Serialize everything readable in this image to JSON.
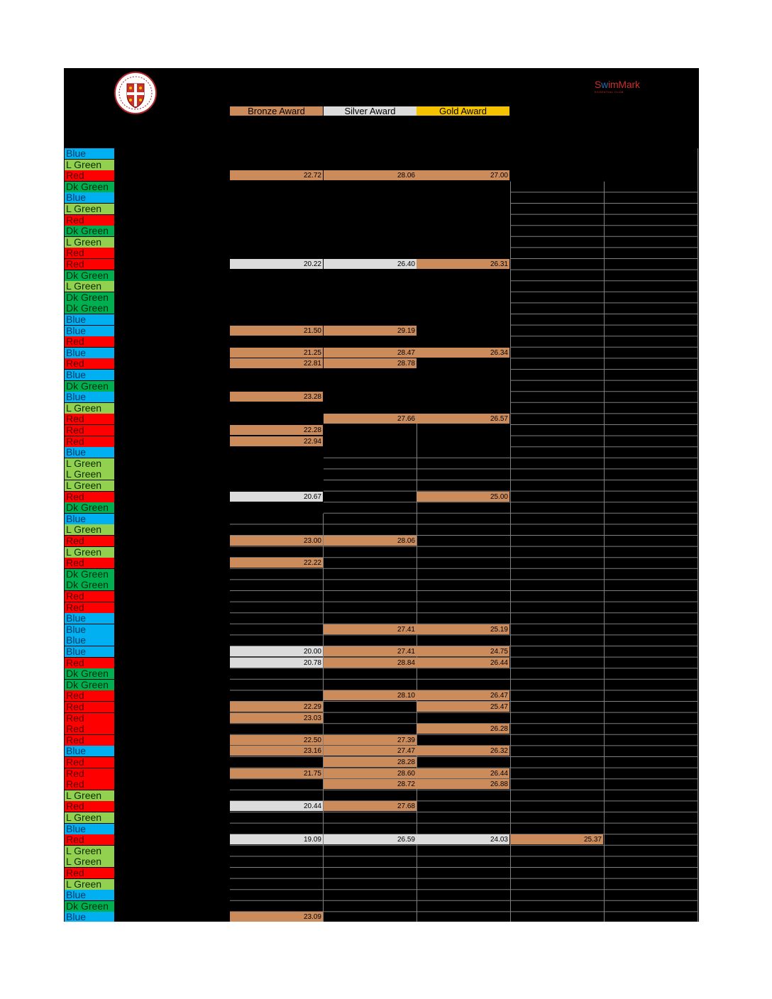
{
  "header": {
    "club_logo_icon": "club-crest-icon",
    "swimmark_logo": {
      "s": "S",
      "w": "w",
      "rest": "imMark",
      "sub": "ESSENTIAL CLUB"
    }
  },
  "legend": {
    "bronze": "Bronze Award",
    "silver": "Silver Award",
    "gold": "Gold Award"
  },
  "colors": {
    "bronze": "#cc8b5b",
    "silver": "#dcdcdc",
    "gold": "#f5c200",
    "Blue": "#00b0f0",
    "L Green": "#92d050",
    "Red": "#ff0000",
    "Dk Green": "#00b050"
  },
  "rows": [
    {
      "tag": "Blue",
      "c": []
    },
    {
      "tag": "L Green",
      "c": []
    },
    {
      "tag": "Red",
      "c": [
        [
          "22.72",
          "bronze"
        ],
        [
          "28.06",
          "bronze"
        ],
        [
          "27.00",
          "bronze"
        ]
      ]
    },
    {
      "tag": "Dk Green",
      "c": []
    },
    {
      "tag": "Blue",
      "c": []
    },
    {
      "tag": "L Green",
      "c": []
    },
    {
      "tag": "Red",
      "c": []
    },
    {
      "tag": "Dk Green",
      "c": []
    },
    {
      "tag": "L Green",
      "c": []
    },
    {
      "tag": "Red",
      "c": []
    },
    {
      "tag": "Red",
      "c": [
        [
          "20.22",
          "silver"
        ],
        [
          "26.40",
          "silver"
        ],
        [
          "26.31",
          "bronze"
        ]
      ]
    },
    {
      "tag": "Dk Green",
      "c": []
    },
    {
      "tag": "L Green",
      "c": []
    },
    {
      "tag": "Dk Green",
      "c": []
    },
    {
      "tag": "Dk Green",
      "c": []
    },
    {
      "tag": "Blue",
      "c": []
    },
    {
      "tag": "Blue",
      "c": [
        [
          "21.50",
          "bronze"
        ],
        [
          "29.19",
          "bronze"
        ]
      ]
    },
    {
      "tag": "Red",
      "c": []
    },
    {
      "tag": "Blue",
      "c": [
        [
          "21.25",
          "bronze"
        ],
        [
          "28.47",
          "bronze"
        ],
        [
          "26.34",
          "bronze"
        ]
      ]
    },
    {
      "tag": "Red",
      "c": [
        [
          "22.81",
          "bronze"
        ],
        [
          "28.78",
          "bronze"
        ]
      ]
    },
    {
      "tag": "Blue",
      "c": []
    },
    {
      "tag": "Dk Green",
      "c": []
    },
    {
      "tag": "Blue",
      "c": [
        [
          "23.28",
          "bronze"
        ]
      ]
    },
    {
      "tag": "L Green",
      "c": []
    },
    {
      "tag": "Red",
      "c": [
        null,
        [
          "27.66",
          "bronze"
        ],
        [
          "26.57",
          "bronze"
        ]
      ]
    },
    {
      "tag": "Red",
      "c": [
        [
          "22.28",
          "bronze"
        ]
      ]
    },
    {
      "tag": "Red",
      "c": [
        [
          "22.94",
          "bronze"
        ]
      ]
    },
    {
      "tag": "Blue",
      "c": []
    },
    {
      "tag": "L Green",
      "c": []
    },
    {
      "tag": "L Green",
      "c": []
    },
    {
      "tag": "L Green",
      "c": []
    },
    {
      "tag": "Red",
      "c": [
        [
          "20.67",
          "silver"
        ],
        null,
        [
          "25.00",
          "bronze"
        ]
      ]
    },
    {
      "tag": "Dk Green",
      "c": []
    },
    {
      "tag": "Blue",
      "c": []
    },
    {
      "tag": "L Green",
      "c": []
    },
    {
      "tag": "Red",
      "c": [
        [
          "23.00",
          "bronze"
        ],
        [
          "28.06",
          "bronze"
        ]
      ]
    },
    {
      "tag": "L Green",
      "c": []
    },
    {
      "tag": "Red",
      "c": [
        [
          "22.22",
          "bronze"
        ]
      ]
    },
    {
      "tag": "Dk Green",
      "c": []
    },
    {
      "tag": "Dk Green",
      "c": []
    },
    {
      "tag": "Red",
      "c": []
    },
    {
      "tag": "Red",
      "c": []
    },
    {
      "tag": "Blue",
      "c": []
    },
    {
      "tag": "Blue",
      "c": [
        null,
        [
          "27.41",
          "bronze"
        ],
        [
          "25.19",
          "bronze"
        ]
      ]
    },
    {
      "tag": "Blue",
      "c": []
    },
    {
      "tag": "Blue",
      "c": [
        [
          "20.00",
          "silver"
        ],
        [
          "27.41",
          "bronze"
        ],
        [
          "24.75",
          "bronze"
        ]
      ]
    },
    {
      "tag": "Red",
      "c": [
        [
          "20.78",
          "silver"
        ],
        [
          "28.84",
          "bronze"
        ],
        [
          "26.44",
          "bronze"
        ]
      ]
    },
    {
      "tag": "Dk Green",
      "c": []
    },
    {
      "tag": "Dk Green",
      "c": []
    },
    {
      "tag": "Red",
      "c": [
        null,
        [
          "28.10",
          "bronze"
        ],
        [
          "26.47",
          "bronze"
        ]
      ]
    },
    {
      "tag": "Red",
      "c": [
        [
          "22.29",
          "bronze"
        ],
        null,
        [
          "25.47",
          "bronze"
        ]
      ]
    },
    {
      "tag": "Red",
      "c": [
        [
          "23.03",
          "bronze"
        ]
      ]
    },
    {
      "tag": "Red",
      "c": [
        null,
        null,
        [
          "26.28",
          "bronze"
        ]
      ]
    },
    {
      "tag": "Red",
      "c": [
        [
          "22.50",
          "bronze"
        ],
        [
          "27.39",
          "bronze"
        ]
      ]
    },
    {
      "tag": "Blue",
      "c": [
        [
          "23.16",
          "bronze"
        ],
        [
          "27.47",
          "bronze"
        ],
        [
          "26.32",
          "bronze"
        ]
      ]
    },
    {
      "tag": "Red",
      "c": [
        null,
        [
          "28.28",
          "bronze"
        ]
      ]
    },
    {
      "tag": "Red",
      "c": [
        [
          "21.75",
          "bronze"
        ],
        [
          "28.60",
          "bronze"
        ],
        [
          "26.44",
          "bronze"
        ]
      ]
    },
    {
      "tag": "Red",
      "c": [
        null,
        [
          "28.72",
          "bronze"
        ],
        [
          "26.88",
          "bronze"
        ]
      ]
    },
    {
      "tag": "L Green",
      "c": []
    },
    {
      "tag": "Red",
      "c": [
        [
          "20.44",
          "silver"
        ],
        [
          "27.68",
          "bronze"
        ]
      ]
    },
    {
      "tag": "L Green",
      "c": []
    },
    {
      "tag": "Blue",
      "c": []
    },
    {
      "tag": "Red",
      "c": [
        [
          "19.09",
          "silver"
        ],
        [
          "26.59",
          "silver"
        ],
        [
          "24.03",
          "silver"
        ],
        [
          "25.37",
          "bronze"
        ]
      ]
    },
    {
      "tag": "L Green",
      "c": []
    },
    {
      "tag": "L Green",
      "c": []
    },
    {
      "tag": "Red",
      "c": []
    },
    {
      "tag": "L Green",
      "c": []
    },
    {
      "tag": "Blue",
      "c": []
    },
    {
      "tag": "Dk Green",
      "c": []
    },
    {
      "tag": "Blue",
      "c": [
        [
          "23.09",
          "bronze"
        ]
      ]
    }
  ]
}
